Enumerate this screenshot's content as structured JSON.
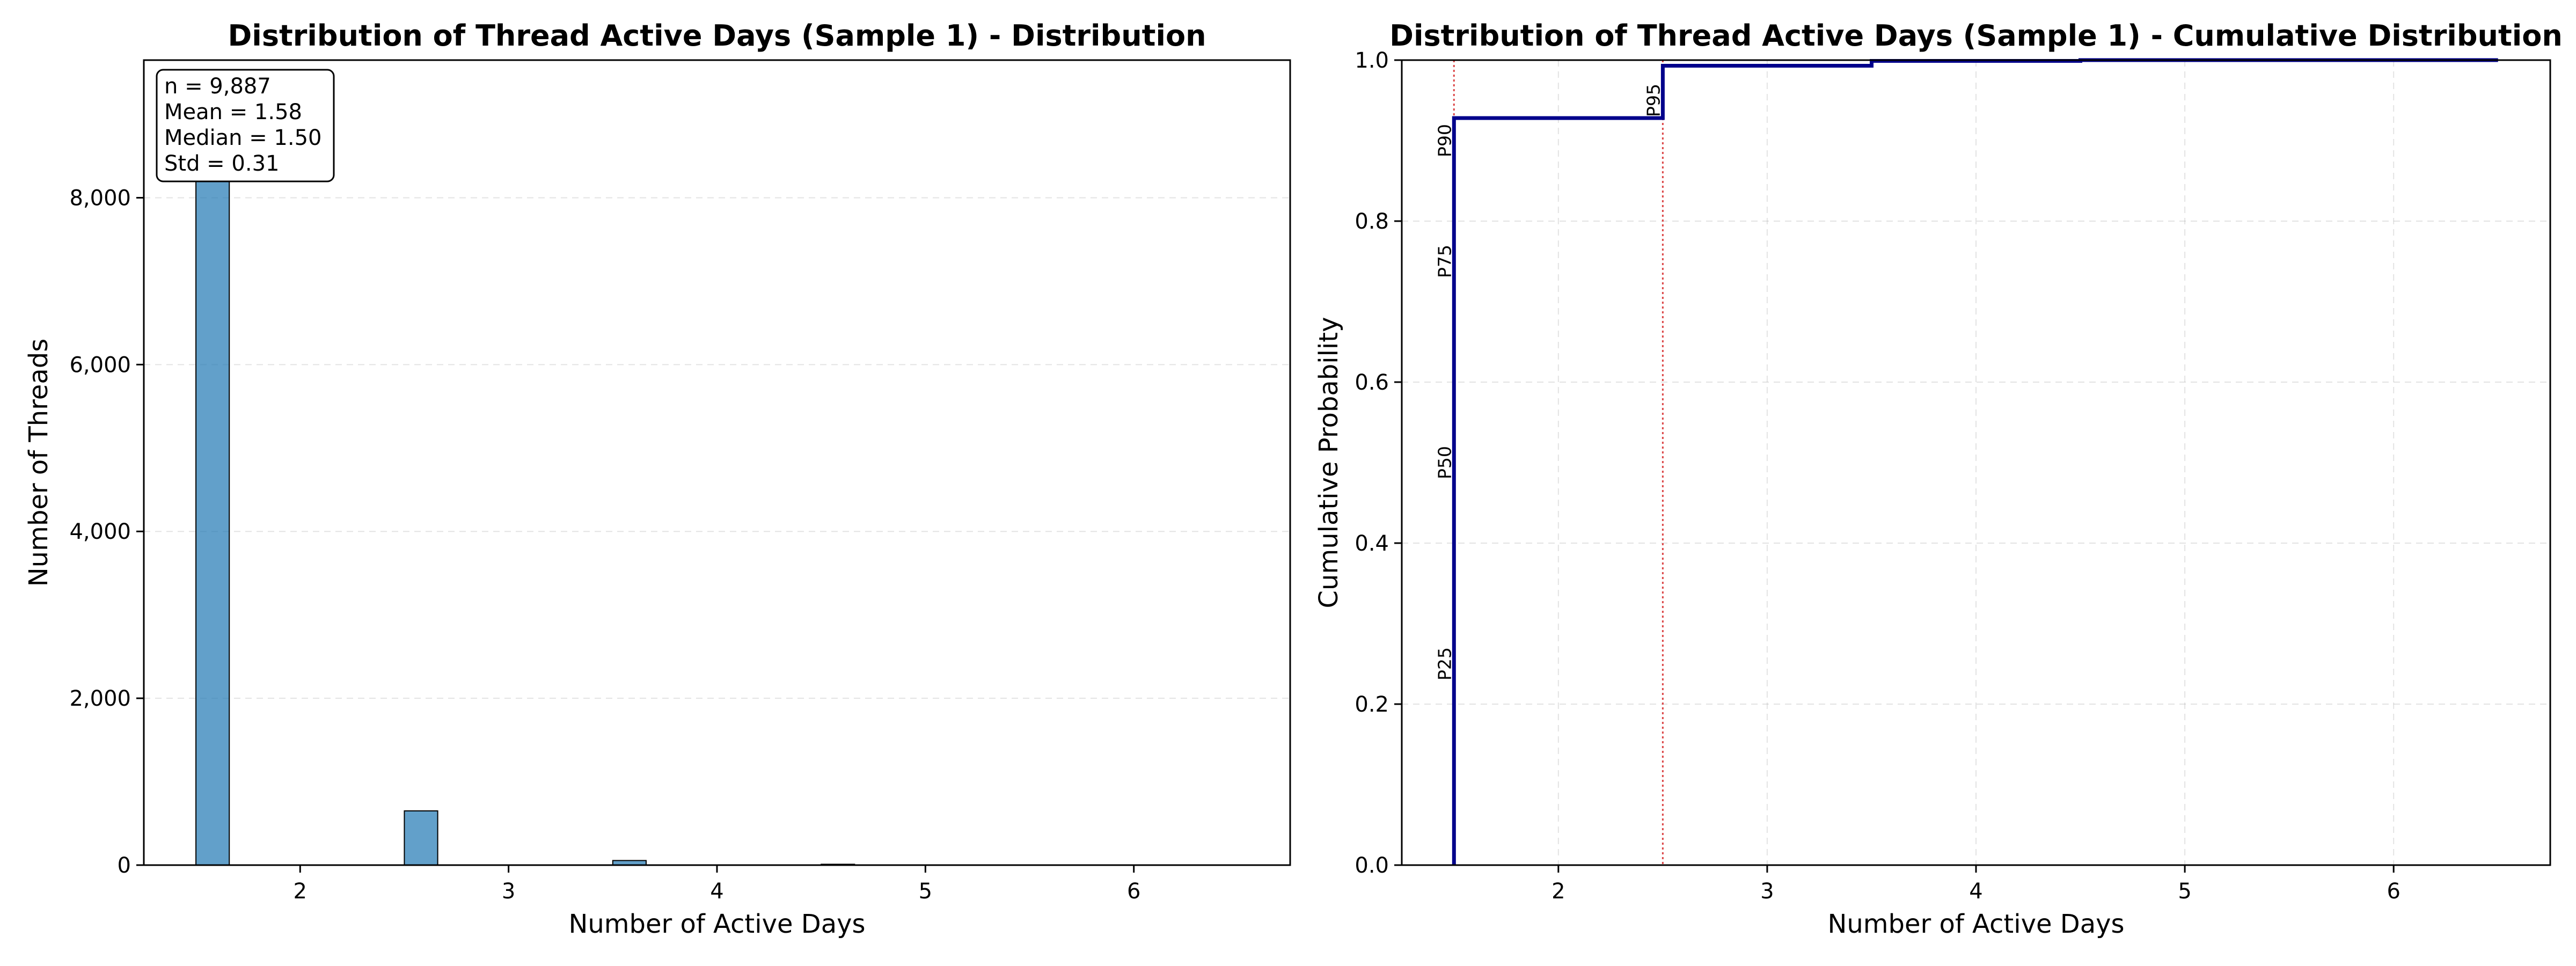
{
  "chart_data": [
    {
      "type": "bar",
      "title": "Distribution of Thread Active Days (Sample 1) - Distribution",
      "xlabel": "Number of Active Days",
      "ylabel": "Number of Threads",
      "xlim": [
        1.25,
        6.75
      ],
      "ylim": [
        0,
        9650
      ],
      "x_ticks": [
        2,
        3,
        4,
        5,
        6
      ],
      "x_tick_labels": [
        "2",
        "3",
        "4",
        "5",
        "6"
      ],
      "y_ticks": [
        0,
        2000,
        4000,
        6000,
        8000
      ],
      "y_tick_labels": [
        "0",
        "2,000",
        "4,000",
        "6,000",
        "8,000"
      ],
      "bin_width": 0.16,
      "bars": [
        {
          "x": 1.58,
          "value": 9170
        },
        {
          "x": 2.58,
          "value": 650
        },
        {
          "x": 3.58,
          "value": 55
        },
        {
          "x": 4.58,
          "value": 10
        },
        {
          "x": 5.58,
          "value": 2
        }
      ],
      "bar_color": "#1f77b4",
      "grid": "y",
      "stats_box_location": "top-left",
      "stats": [
        "n = 9,887",
        "Mean = 1.58",
        "Median = 1.50",
        "Std = 0.31"
      ]
    },
    {
      "type": "line",
      "title": "Distribution of Thread Active Days (Sample 1) - Cumulative Distribution",
      "xlabel": "Number of Active Days",
      "ylabel": "Cumulative Probability",
      "xlim": [
        1.25,
        6.75
      ],
      "ylim": [
        0,
        1
      ],
      "x_ticks": [
        2,
        3,
        4,
        5,
        6
      ],
      "x_tick_labels": [
        "2",
        "3",
        "4",
        "5",
        "6"
      ],
      "y_ticks": [
        0,
        0.2,
        0.4,
        0.6,
        0.8,
        1.0
      ],
      "y_tick_labels": [
        "0.0",
        "0.2",
        "0.4",
        "0.6",
        "0.8",
        "1.0"
      ],
      "line_color": "#00008b",
      "step_points": [
        {
          "x": 1.5,
          "y": 0
        },
        {
          "x": 1.5,
          "y": 0.928
        },
        {
          "x": 2.5,
          "y": 0.928
        },
        {
          "x": 2.5,
          "y": 0.993
        },
        {
          "x": 3.5,
          "y": 0.993
        },
        {
          "x": 3.5,
          "y": 0.999
        },
        {
          "x": 4.5,
          "y": 0.999
        },
        {
          "x": 4.5,
          "y": 1.0
        },
        {
          "x": 6.5,
          "y": 1.0
        }
      ],
      "percentile_lines": [
        {
          "x": 1.5,
          "color": "#d62728"
        },
        {
          "x": 2.5,
          "color": "#d62728"
        }
      ],
      "percentile_labels": [
        {
          "text": "P25",
          "x": 1.5,
          "y": 0.25
        },
        {
          "text": "P50",
          "x": 1.5,
          "y": 0.5
        },
        {
          "text": "P75",
          "x": 1.5,
          "y": 0.75
        },
        {
          "text": "P90",
          "x": 1.5,
          "y": 0.9
        },
        {
          "text": "P95",
          "x": 2.5,
          "y": 0.95
        }
      ],
      "grid": "both"
    }
  ]
}
